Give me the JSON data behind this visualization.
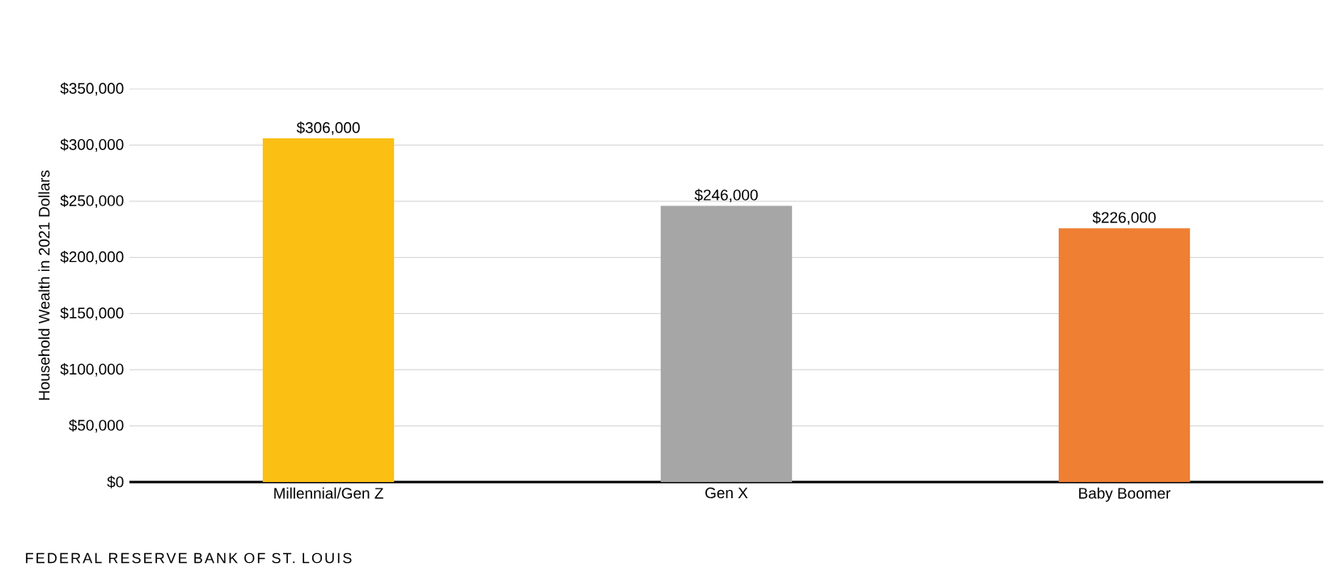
{
  "chart_data": {
    "type": "bar",
    "ylabel": "Household Wealth in 2021 Dollars",
    "categories": [
      "Millennial/Gen Z",
      "Gen X",
      "Baby Boomer"
    ],
    "values": [
      306000,
      246000,
      226000
    ],
    "colors": [
      "#fbbf14",
      "#a6a6a6",
      "#ee7f33"
    ],
    "value_labels": [
      "$306,000",
      "$246,000",
      "$226,000"
    ],
    "ylim": [
      0,
      350000
    ],
    "yticks": [
      {
        "value": 0,
        "label": "$0"
      },
      {
        "value": 50000,
        "label": "$50,000"
      },
      {
        "value": 100000,
        "label": "$100,000"
      },
      {
        "value": 150000,
        "label": "$150,000"
      },
      {
        "value": 200000,
        "label": "$200,000"
      },
      {
        "value": 250000,
        "label": "$250,000"
      },
      {
        "value": 300000,
        "label": "$300,000"
      },
      {
        "value": 350000,
        "label": "$350,000"
      }
    ],
    "grid": "y",
    "annotations": [
      "FEDERAL RESERVE BANK OF ST. LOUIS"
    ]
  }
}
